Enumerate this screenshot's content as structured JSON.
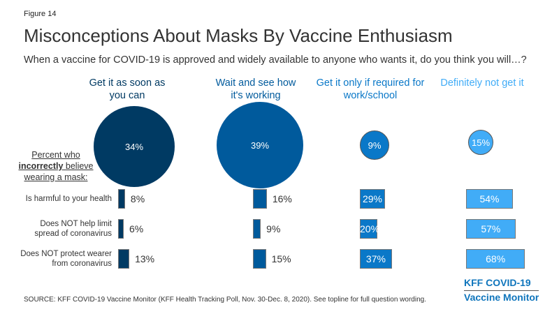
{
  "figure_label": "Figure 14",
  "title": "Misconceptions About Masks By Vaccine Enthusiasm",
  "subtitle": "When a vaccine for COVID-19 is approved and widely available to anyone who wants it, do you think you will…?",
  "row_header_prefix": "Percent who",
  "row_header_bold": "incorrectly",
  "row_header_rest": "believe wearing a mask:",
  "source": "SOURCE: KFF COVID-19 Vaccine Monitor (KFF Health Tracking Poll, Nov. 30-Dec. 8, 2020). See topline for full question wording.",
  "logo": {
    "line1": "KFF COVID-19",
    "line2": "Vaccine Monitor"
  },
  "chart_data": {
    "type": "bar",
    "title": "Misconceptions About Masks By Vaccine Enthusiasm",
    "categories": [
      "Is harmful to your health",
      "Does NOT help limit spread of coronavirus",
      "Does NOT protect wearer from coronavirus"
    ],
    "groups": [
      {
        "name": "Get it as soon as you can",
        "share": 34,
        "share_label": "34%",
        "color": "#003a63",
        "values": [
          8,
          6,
          13
        ],
        "labels": [
          "8%",
          "6%",
          "13%"
        ]
      },
      {
        "name": "Wait and see how it's working",
        "share": 39,
        "share_label": "39%",
        "color": "#005a9c",
        "values": [
          16,
          9,
          15
        ],
        "labels": [
          "16%",
          "9%",
          "15%"
        ]
      },
      {
        "name": "Get it only if required for work/school",
        "share": 9,
        "share_label": "9%",
        "color": "#0a78c8",
        "values": [
          29,
          20,
          37
        ],
        "labels": [
          "29%",
          "20%",
          "37%"
        ]
      },
      {
        "name": "Definitely not get it",
        "share": 15,
        "share_label": "15%",
        "color": "#41acf7",
        "values": [
          54,
          57,
          68
        ],
        "labels": [
          "54%",
          "57%",
          "68%"
        ]
      }
    ],
    "unit": "%"
  }
}
